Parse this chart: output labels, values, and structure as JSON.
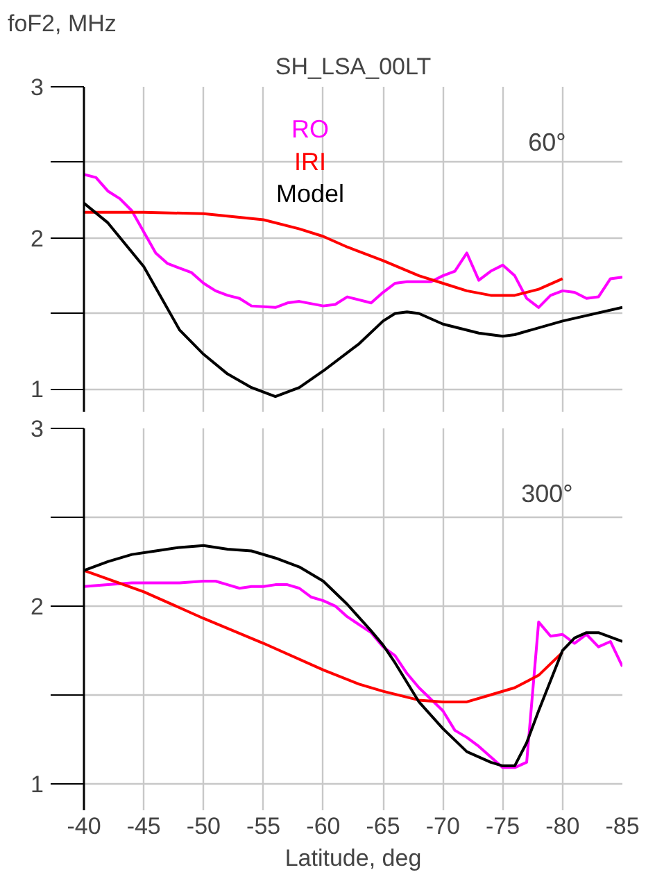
{
  "chart_data": [
    {
      "type": "line",
      "title": "SH_LSA_00LT",
      "ylabel": "foF2, MHz",
      "annotations": [
        "60°"
      ],
      "xlim": [
        -40,
        -85
      ],
      "xticks": [
        -40,
        -45,
        -50,
        -55,
        -60,
        -65,
        -70,
        -75,
        -80,
        -85
      ],
      "ylim": [
        0.85,
        3
      ],
      "yticks": [
        1,
        2,
        3
      ],
      "grid": true,
      "tick_labels": "y",
      "series": [
        {
          "name": "RO",
          "color": "#ff00ff",
          "x": [
            -40,
            -41,
            -42,
            -43,
            -44,
            -45,
            -46,
            -47,
            -49,
            -50,
            -51,
            -52,
            -53,
            -54,
            -56,
            -57,
            -58,
            -60,
            -61,
            -62,
            -64,
            -65,
            -66,
            -67,
            -69,
            -70,
            -71,
            -72,
            -73,
            -74,
            -75,
            -76,
            -77,
            -78,
            -79,
            -80,
            -81,
            -82,
            -83,
            -84,
            -85
          ],
          "values": [
            2.42,
            2.4,
            2.31,
            2.26,
            2.18,
            2.04,
            1.9,
            1.83,
            1.77,
            1.7,
            1.65,
            1.62,
            1.6,
            1.55,
            1.54,
            1.57,
            1.58,
            1.55,
            1.56,
            1.61,
            1.57,
            1.64,
            1.7,
            1.71,
            1.71,
            1.75,
            1.78,
            1.9,
            1.72,
            1.78,
            1.82,
            1.75,
            1.6,
            1.54,
            1.62,
            1.65,
            1.64,
            1.6,
            1.61,
            1.73,
            1.74
          ]
        },
        {
          "name": "IRI",
          "color": "#ff0000",
          "x": [
            -40,
            -45,
            -50,
            -55,
            -58,
            -60,
            -62,
            -65,
            -68,
            -70,
            -72,
            -74,
            -76,
            -78,
            -80
          ],
          "values": [
            2.17,
            2.17,
            2.16,
            2.12,
            2.06,
            2.01,
            1.94,
            1.85,
            1.75,
            1.7,
            1.65,
            1.62,
            1.62,
            1.66,
            1.73
          ]
        },
        {
          "name": "Model",
          "color": "#000000",
          "x": [
            -40,
            -42,
            -45,
            -48,
            -50,
            -52,
            -54,
            -56,
            -58,
            -60,
            -63,
            -65,
            -66,
            -67,
            -68,
            -70,
            -73,
            -75,
            -76,
            -80,
            -85
          ],
          "values": [
            2.23,
            2.1,
            1.81,
            1.39,
            1.23,
            1.1,
            1.01,
            0.95,
            1.01,
            1.12,
            1.3,
            1.45,
            1.5,
            1.51,
            1.5,
            1.43,
            1.37,
            1.35,
            1.36,
            1.45,
            1.54
          ]
        }
      ]
    },
    {
      "type": "line",
      "xlabel": "Latitude, deg",
      "annotations": [
        "300°"
      ],
      "xlim": [
        -40,
        -85
      ],
      "xticks": [
        -40,
        -45,
        -50,
        -55,
        -60,
        -65,
        -70,
        -75,
        -80,
        -85
      ],
      "ylim": [
        0.85,
        3
      ],
      "yticks": [
        1,
        2,
        3
      ],
      "grid": true,
      "series": [
        {
          "color": "#ff00ff",
          "x": [
            -40,
            -42,
            -44,
            -46,
            -48,
            -50,
            -51,
            -52,
            -53,
            -54,
            -55,
            -56,
            -57,
            -58,
            -59,
            -60,
            -61,
            -62,
            -64,
            -65,
            -66,
            -67,
            -68,
            -70,
            -71,
            -72,
            -73,
            -74,
            -75,
            -76,
            -77,
            -78,
            -79,
            -80,
            -81,
            -82,
            -83,
            -84,
            -85
          ],
          "values": [
            2.11,
            2.12,
            2.13,
            2.13,
            2.13,
            2.14,
            2.14,
            2.12,
            2.1,
            2.11,
            2.11,
            2.12,
            2.12,
            2.1,
            2.05,
            2.03,
            2.0,
            1.94,
            1.85,
            1.77,
            1.72,
            1.62,
            1.54,
            1.41,
            1.3,
            1.26,
            1.21,
            1.15,
            1.09,
            1.09,
            1.12,
            1.91,
            1.83,
            1.84,
            1.79,
            1.84,
            1.77,
            1.8,
            1.66
          ]
        },
        {
          "color": "#ff0000",
          "x": [
            -40,
            -45,
            -50,
            -55,
            -60,
            -63,
            -65,
            -68,
            -70,
            -72,
            -74,
            -76,
            -78,
            -80
          ],
          "values": [
            2.2,
            2.08,
            1.93,
            1.79,
            1.64,
            1.56,
            1.52,
            1.47,
            1.46,
            1.46,
            1.5,
            1.54,
            1.61,
            1.74
          ]
        },
        {
          "color": "#000000",
          "x": [
            -40,
            -42,
            -44,
            -46,
            -48,
            -50,
            -52,
            -54,
            -56,
            -58,
            -60,
            -62,
            -64,
            -65,
            -66,
            -68,
            -70,
            -72,
            -74,
            -75,
            -76,
            -77,
            -78,
            -80,
            -81,
            -82,
            -83,
            -85
          ],
          "values": [
            2.2,
            2.25,
            2.29,
            2.31,
            2.33,
            2.34,
            2.32,
            2.31,
            2.27,
            2.22,
            2.14,
            2.01,
            1.86,
            1.78,
            1.68,
            1.46,
            1.31,
            1.18,
            1.12,
            1.1,
            1.1,
            1.23,
            1.41,
            1.75,
            1.82,
            1.85,
            1.85,
            1.8
          ]
        }
      ]
    }
  ]
}
